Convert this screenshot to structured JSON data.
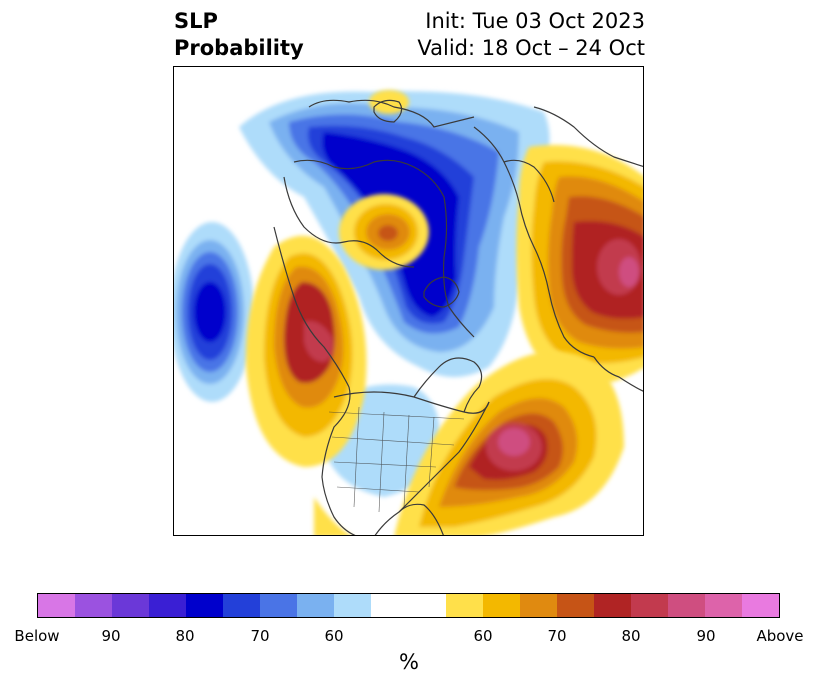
{
  "title": {
    "left_line1": "SLP",
    "left_line2": "Probability",
    "right_line1": "Init: Tue 03 Oct 2023",
    "right_line2": "Valid: 18 Oct – 24 Oct"
  },
  "colorbar": {
    "colors": [
      "#d876e6",
      "#9b52e0",
      "#6b38d8",
      "#3a1fd4",
      "#0000cc",
      "#2340d9",
      "#4a74e6",
      "#7ab1f0",
      "#aedcfa",
      "#ffffff",
      "#ffffff",
      "#ffe04a",
      "#f3b800",
      "#e08a10",
      "#c65416",
      "#b02424",
      "#c23a4e",
      "#cf4e80",
      "#dd63aa",
      "#e97ae0"
    ],
    "tick_labels": [
      "Below",
      "90",
      "80",
      "70",
      "60",
      "60",
      "70",
      "80",
      "90",
      "Above"
    ],
    "unit": "%"
  },
  "map": {
    "projection": "north-polar-stereographic",
    "region": "Northern Hemisphere (North America centered)"
  }
}
